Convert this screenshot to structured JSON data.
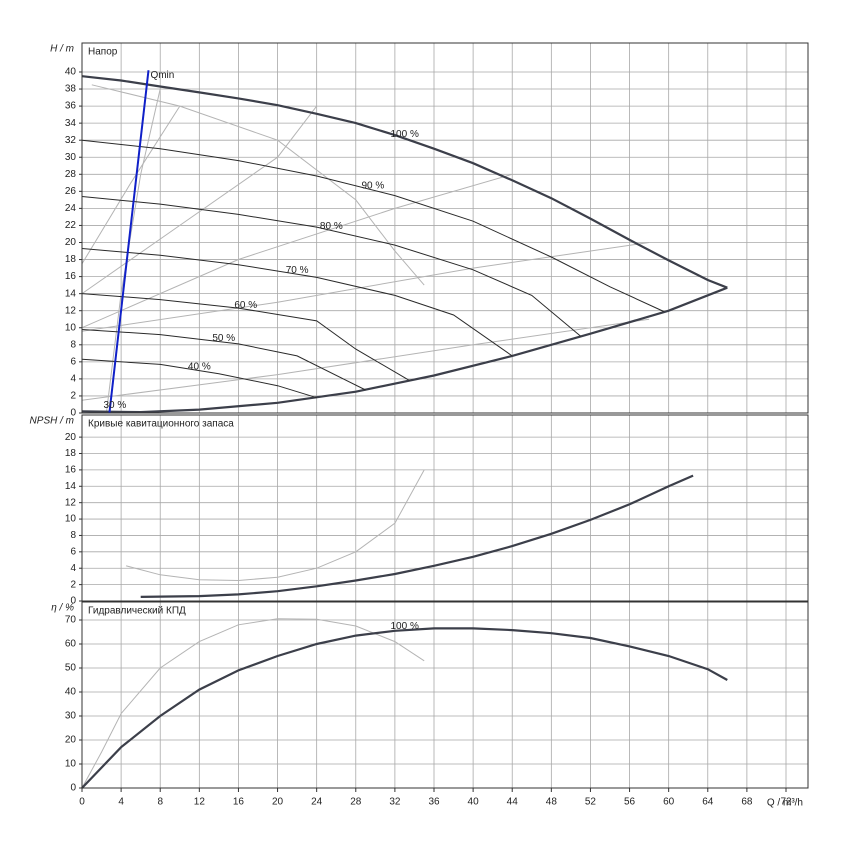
{
  "chart_data": {
    "type": "line",
    "xlabel": "Q / m³/h",
    "xlim": [
      0,
      74.25
    ],
    "xticks": [
      0,
      4,
      8,
      12,
      16,
      20,
      24,
      28,
      32,
      36,
      40,
      44,
      48,
      52,
      56,
      60,
      64,
      68,
      72
    ],
    "grid": true,
    "panels": [
      {
        "type": "line",
        "ylabel": "H / m",
        "title": "Напор",
        "ylim": [
          0,
          43.4
        ],
        "yticks": [
          0,
          2,
          4,
          6,
          8,
          10,
          12,
          14,
          16,
          18,
          20,
          22,
          24,
          26,
          28,
          30,
          32,
          34,
          36,
          38,
          40
        ],
        "annotations": [
          {
            "text": "Qmin",
            "x": 7.0,
            "y": 39.6
          },
          {
            "text": "30 %",
            "x": 2.2,
            "y": 0.9
          }
        ],
        "series": [
          {
            "color": "#b4b4b4",
            "x": [
              0,
              5,
              10
            ],
            "values": [
              17.5,
              27,
              36
            ]
          },
          {
            "color": "#b4b4b4",
            "x": [
              0,
              10,
              20,
              24
            ],
            "values": [
              14,
              22,
              30,
              36
            ]
          },
          {
            "color": "#b4b4b4",
            "x": [
              0,
              16,
              32,
              44
            ],
            "values": [
              10,
              18,
              24,
              28
            ]
          },
          {
            "color": "#b4b4b4",
            "x": [
              0,
              20,
              40,
              58
            ],
            "values": [
              9.6,
              13,
              17,
              20
            ]
          },
          {
            "color": "#b4b4b4",
            "x": [
              0,
              20,
              40,
              58
            ],
            "values": [
              1.5,
              4.5,
              8,
              11
            ]
          },
          {
            "color": "#b4b4b4",
            "x": [
              1,
              10,
              20,
              28,
              32,
              35
            ],
            "values": [
              38.5,
              36,
              32,
              25,
              19,
              15
            ]
          },
          {
            "color": "#b4b4b4",
            "x": [
              2.5,
              4,
              6,
              8
            ],
            "values": [
              0,
              14,
              28,
              38
            ]
          },
          {
            "color": "#3c3f4a",
            "x": [
              0,
              6,
              12,
              20,
              28,
              36,
              44,
              52,
              60,
              66
            ],
            "values": [
              0.2,
              0.1,
              0.4,
              1.2,
              2.5,
              4.4,
              6.7,
              9.3,
              12,
              14.7
            ]
          },
          {
            "name": "100 %",
            "color": "#3c3f4a",
            "x": [
              0,
              4,
              8,
              12,
              16,
              20,
              24,
              28,
              32,
              36,
              40,
              44,
              48,
              52,
              56,
              60,
              64,
              66
            ],
            "values": [
              39.5,
              39,
              38.3,
              37.6,
              36.9,
              36.1,
              35.1,
              34,
              32.6,
              31,
              29.3,
              27.3,
              25.2,
              22.8,
              20.3,
              17.9,
              15.6,
              14.7
            ]
          },
          {
            "name": "90 %",
            "color": "#2a2a2a",
            "x": [
              0,
              8,
              16,
              24,
              32,
              40,
              48,
              54,
              59.5
            ],
            "values": [
              32,
              31,
              29.6,
              27.8,
              25.5,
              22.5,
              18.3,
              14.8,
              11.9
            ]
          },
          {
            "name": "80 %",
            "color": "#2a2a2a",
            "x": [
              0,
              8,
              16,
              24,
              32,
              40,
              46,
              51
            ],
            "values": [
              25.4,
              24.5,
              23.3,
              21.8,
              19.7,
              16.8,
              13.8,
              9
            ]
          },
          {
            "name": "70 %",
            "color": "#2a2a2a",
            "x": [
              0,
              8,
              16,
              24,
              32,
              38,
              44
            ],
            "values": [
              19.3,
              18.5,
              17.4,
              15.9,
              13.8,
              11.5,
              6.7
            ]
          },
          {
            "name": "60 %",
            "color": "#2a2a2a",
            "x": [
              0,
              8,
              16,
              24,
              28,
              33.5
            ],
            "values": [
              14,
              13.3,
              12.3,
              10.8,
              7.5,
              3.8
            ]
          },
          {
            "name": "50 %",
            "color": "#2a2a2a",
            "x": [
              0,
              8,
              16,
              22,
              29
            ],
            "values": [
              9.8,
              9.2,
              8.1,
              6.7,
              2.7
            ]
          },
          {
            "name": "40 %",
            "color": "#2a2a2a",
            "x": [
              0,
              8,
              14,
              20,
              24
            ],
            "values": [
              6.3,
              5.7,
              4.6,
              3.2,
              1.8
            ]
          },
          {
            "color": "#1020c8",
            "x": [
              2.8,
              6.8
            ],
            "values": [
              0,
              40.2
            ]
          }
        ]
      },
      {
        "type": "line",
        "ylabel": "NPSH / m",
        "title": "Кривые кавитационного запаса",
        "ylim": [
          0,
          22.7
        ],
        "yticks": [
          0,
          2,
          4,
          6,
          8,
          10,
          12,
          14,
          16,
          18,
          20
        ],
        "series": [
          {
            "color": "#b4b4b4",
            "x": [
              4.5,
              8,
              12,
              16,
              20,
              24,
              28,
              32,
              35
            ],
            "values": [
              4.3,
              3.2,
              2.6,
              2.5,
              2.9,
              4,
              6,
              9.5,
              16
            ]
          },
          {
            "color": "#3c3f4a",
            "x": [
              6,
              12,
              16,
              20,
              24,
              28,
              32,
              36,
              40,
              44,
              48,
              52,
              56,
              60,
              62.5
            ],
            "values": [
              0.5,
              0.6,
              0.8,
              1.2,
              1.8,
              2.5,
              3.3,
              4.3,
              5.4,
              6.7,
              8.2,
              9.9,
              11.8,
              14,
              15.3
            ]
          }
        ]
      },
      {
        "type": "line",
        "ylabel": "η / %",
        "title": "Гидравлический КПД",
        "ylim": [
          0,
          77.5
        ],
        "yticks": [
          0,
          10,
          20,
          30,
          40,
          50,
          60,
          70
        ],
        "series": [
          {
            "color": "#b4b4b4",
            "x": [
              0,
              2,
              4,
              8,
              12,
              16,
              20,
              24,
              28,
              32,
              35
            ],
            "values": [
              0,
              15,
              31,
              50,
              61,
              68,
              70.5,
              70.3,
              67.5,
              61,
              53
            ]
          },
          {
            "name": "100 %",
            "color": "#3c3f4a",
            "x": [
              0,
              4,
              8,
              12,
              16,
              20,
              24,
              28,
              32,
              36,
              40,
              44,
              48,
              52,
              56,
              60,
              64,
              66
            ],
            "values": [
              0,
              17,
              30,
              41,
              49,
              55,
              60,
              63.5,
              65.5,
              66.5,
              66.5,
              65.8,
              64.5,
              62.5,
              59,
              55,
              49.5,
              45
            ]
          }
        ]
      }
    ]
  }
}
